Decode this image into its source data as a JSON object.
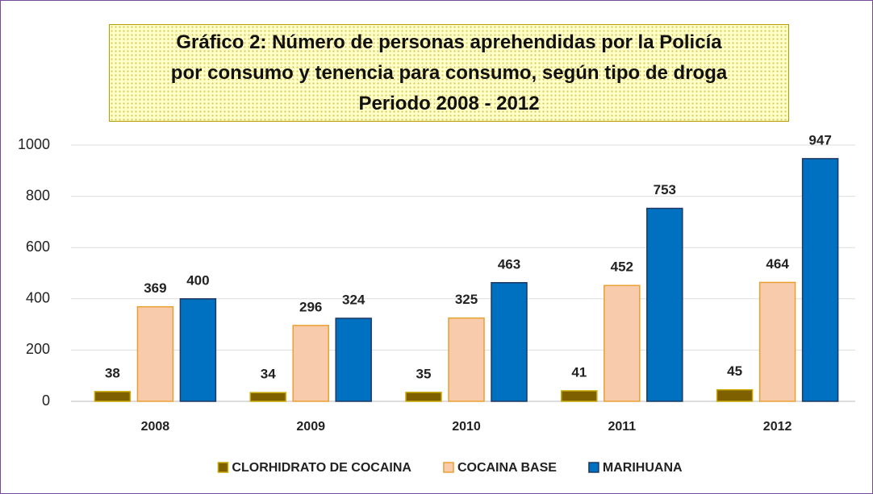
{
  "chart_data": {
    "type": "bar",
    "title": [
      "Gráfico 2: Número de personas aprehendidas por la Policía",
      "por consumo y tenencia para consumo, según tipo de droga",
      "Periodo 2008 - 2012"
    ],
    "categories": [
      "2008",
      "2009",
      "2010",
      "2011",
      "2012"
    ],
    "series": [
      {
        "name": "CLORHIDRATO DE COCAINA",
        "color": "#7f6000",
        "border": "#c9a900",
        "values": [
          38,
          34,
          35,
          41,
          45
        ]
      },
      {
        "name": "COCAINA BASE",
        "color": "#f8cbad",
        "border": "#e8a030",
        "values": [
          369,
          296,
          325,
          452,
          464
        ]
      },
      {
        "name": "MARIHUANA",
        "color": "#0070c0",
        "border": "#1f3864",
        "values": [
          400,
          324,
          463,
          753,
          947
        ]
      }
    ],
    "ylim": [
      0,
      1000
    ],
    "yticks": [
      0,
      200,
      400,
      600,
      800,
      1000
    ],
    "grid": true,
    "legend": "bottom"
  }
}
